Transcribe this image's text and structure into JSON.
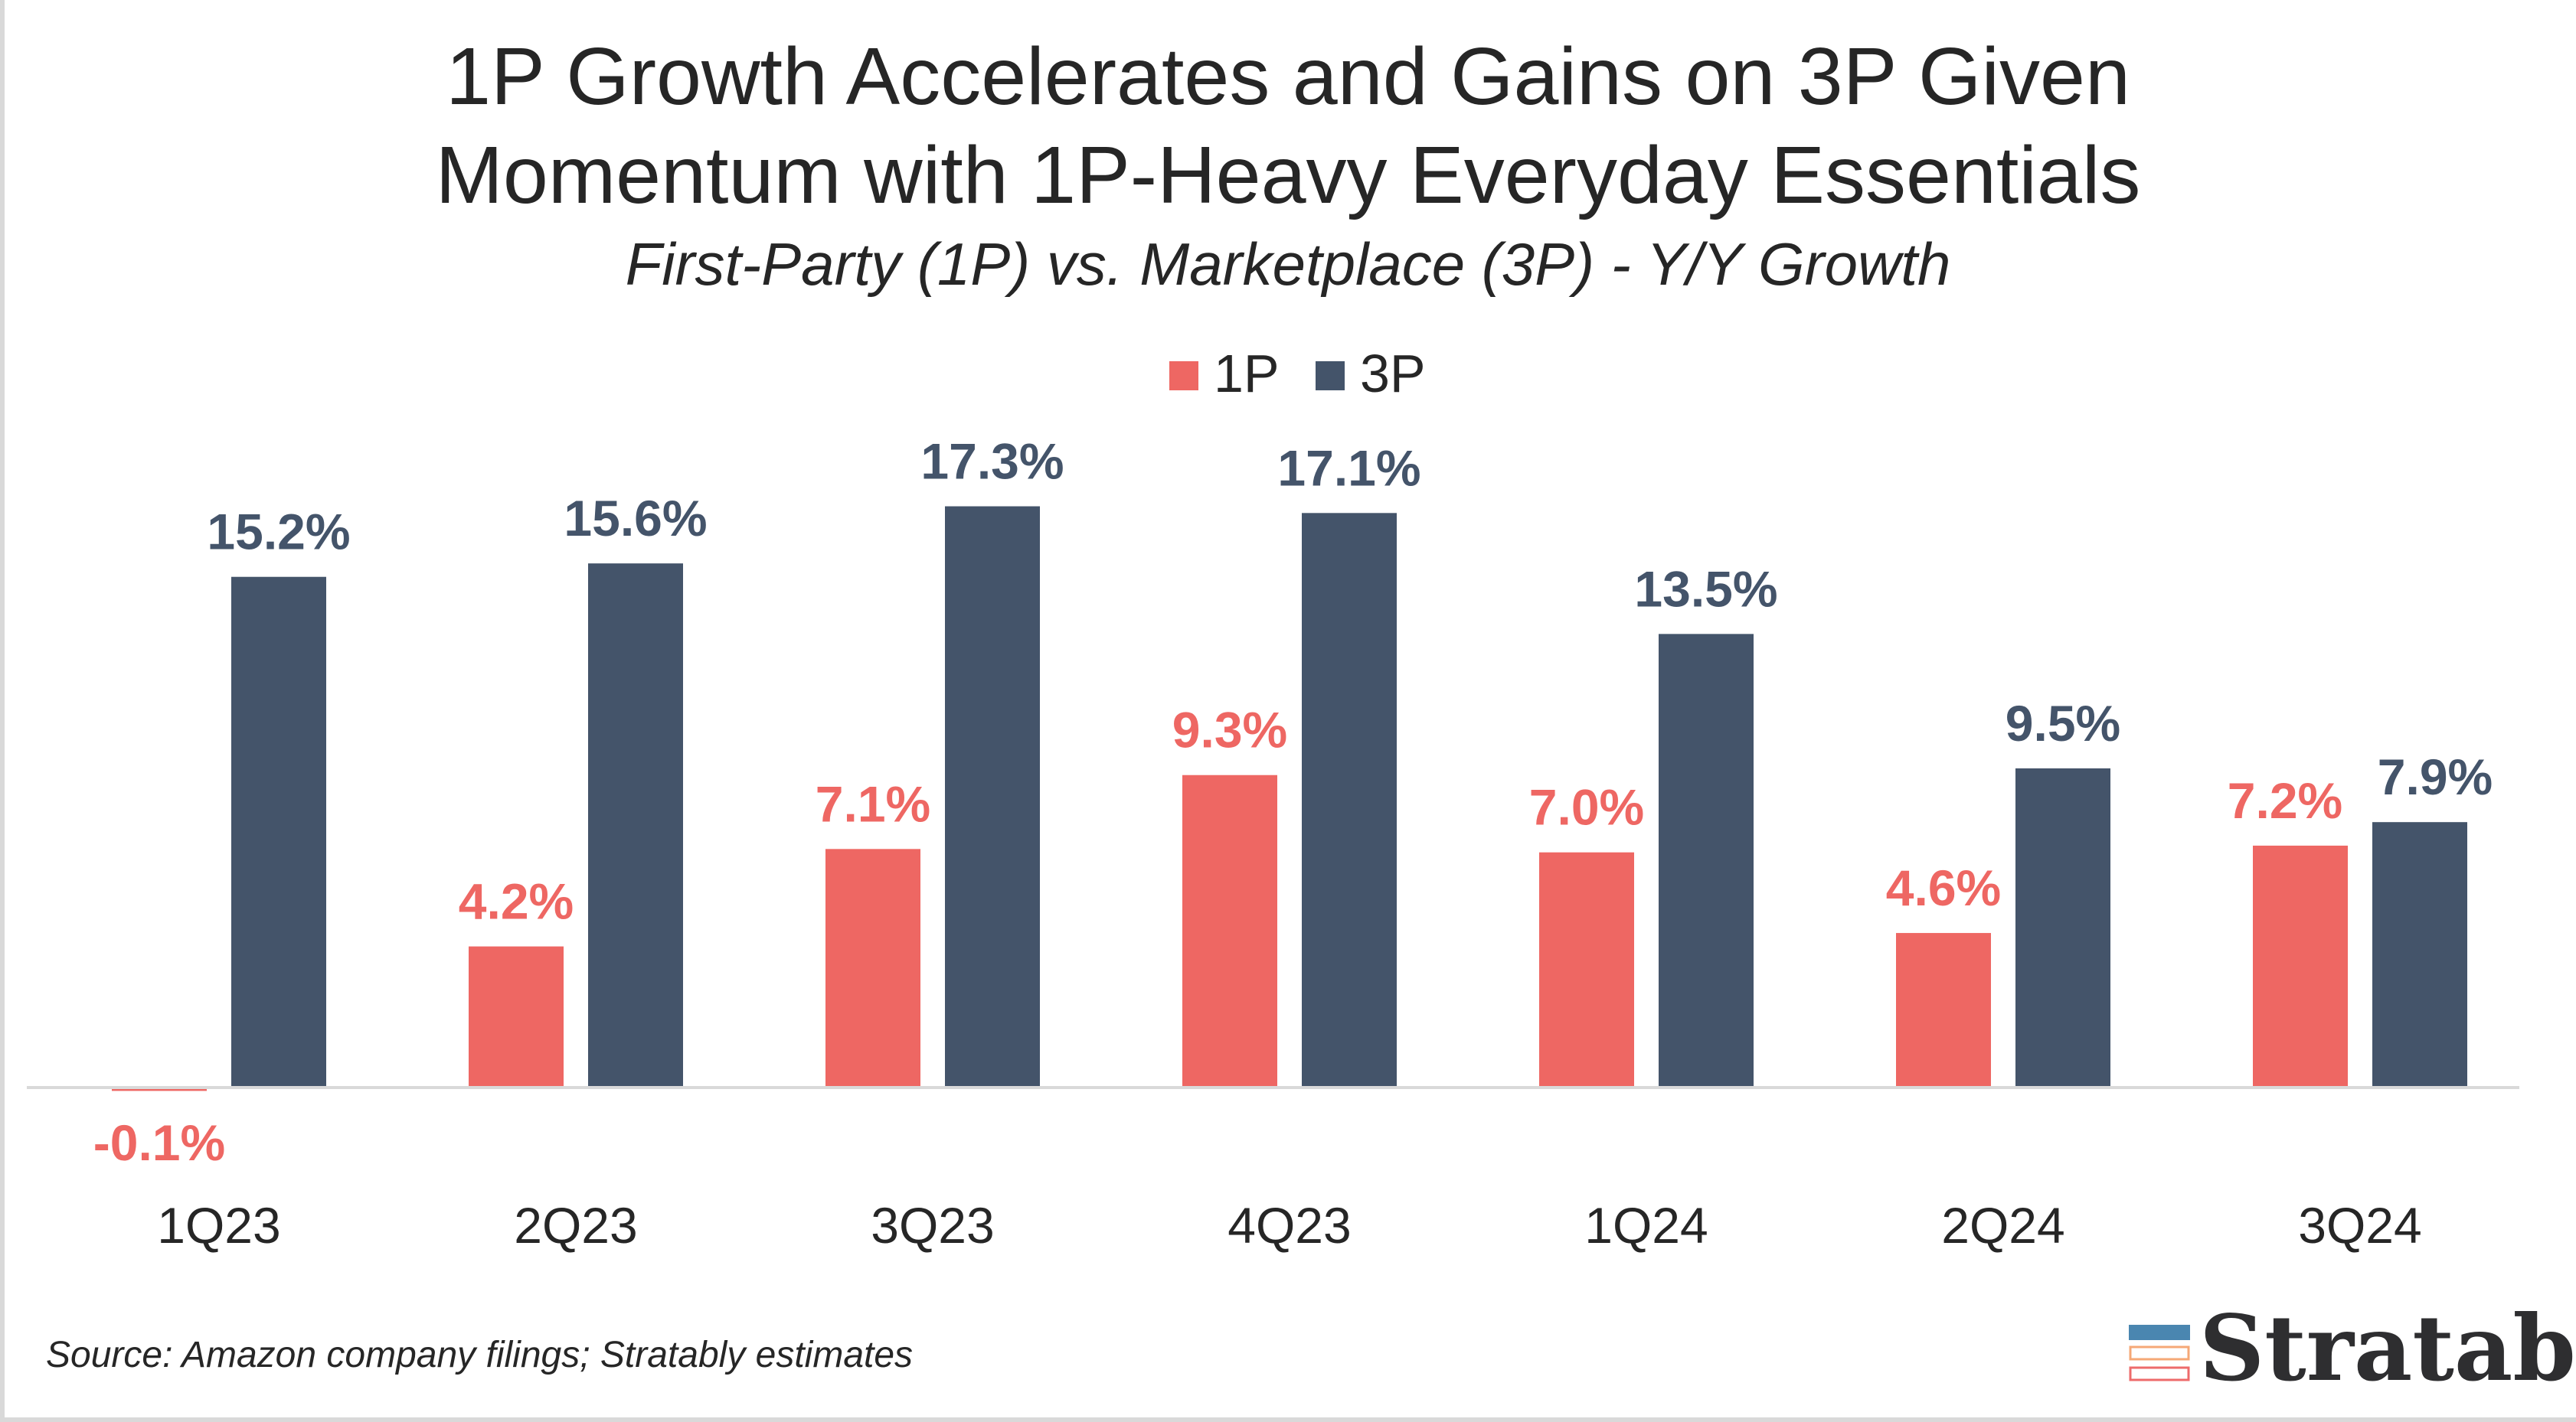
{
  "chart_data": {
    "type": "bar",
    "title": [
      "1P Growth Accelerates and Gains on 3P Given",
      "Momentum with 1P-Heavy Everyday Essentials"
    ],
    "subtitle": "First-Party (1P) vs. Marketplace (3P) - Y/Y Growth",
    "categories": [
      "1Q23",
      "2Q23",
      "3Q23",
      "4Q23",
      "1Q24",
      "2Q24",
      "3Q24"
    ],
    "series": [
      {
        "name": "1P",
        "color": "#EE6763",
        "values": [
          -0.1,
          4.2,
          7.1,
          9.3,
          7.0,
          4.6,
          7.2
        ],
        "labels": [
          "-0.1%",
          "4.2%",
          "7.1%",
          "9.3%",
          "7.0%",
          "4.6%",
          "7.2%"
        ]
      },
      {
        "name": "3P",
        "color": "#44546A",
        "values": [
          15.2,
          15.6,
          17.3,
          17.1,
          13.5,
          9.5,
          7.9
        ],
        "labels": [
          "15.2%",
          "15.6%",
          "17.3%",
          "17.1%",
          "13.5%",
          "9.5%",
          "7.9%"
        ]
      }
    ],
    "xlabel": "",
    "ylabel": "",
    "grid": false,
    "legend_position": "top-center",
    "y_axis_visible": false
  },
  "footer": {
    "source": "Source: Amazon company filings; Stratably estimates",
    "logo_text": "Stratably"
  }
}
